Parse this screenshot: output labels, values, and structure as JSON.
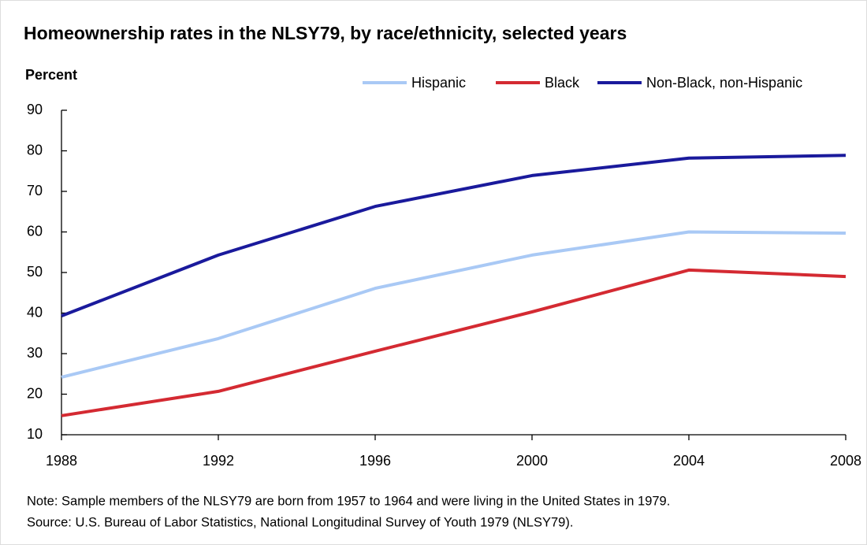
{
  "chart_data": {
    "type": "line",
    "title": "Homeownership rates in the NLSY79, by race/ethnicity, selected years",
    "y_label": "Percent",
    "x": [
      1988,
      1992,
      1996,
      2000,
      2004,
      2008
    ],
    "xlim": [
      1988,
      2008
    ],
    "xticks": [
      1988,
      1992,
      1996,
      2000,
      2004,
      2008
    ],
    "ylim": [
      10,
      90
    ],
    "yticks": [
      10,
      20,
      30,
      40,
      50,
      60,
      70,
      80,
      90
    ],
    "grid": false,
    "legend": "top",
    "series": [
      {
        "name": "Hispanic",
        "color": "#a9c9f5",
        "values": [
          24.2,
          33.7,
          46.1,
          54.3,
          60.0,
          59.7
        ]
      },
      {
        "name": "Black",
        "color": "#d42a32",
        "values": [
          14.7,
          20.7,
          30.6,
          40.3,
          50.6,
          49.0
        ]
      },
      {
        "name": "Non-Black, non-Hispanic",
        "color": "#1a1a9c",
        "values": [
          39.3,
          54.3,
          66.3,
          73.9,
          78.2,
          78.9
        ]
      }
    ],
    "note": "Note: Sample members of the NLSY79 are born from 1957 to 1964 and were living in the United States in 1979.",
    "source": "Source: U.S. Bureau of Labor Statistics, National Longitudinal Survey of Youth 1979 (NLSY79)."
  }
}
